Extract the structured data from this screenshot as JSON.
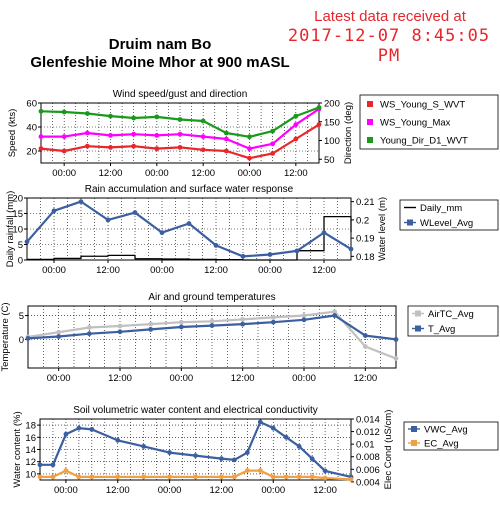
{
  "header": {
    "station_name": "Druim nam Bo",
    "station_subtitle": "Glenfeshie Moine Mhor at 900 mASL",
    "latest_label": "Latest data received at",
    "latest_time": "2017-12-07 8:45:05 PM"
  },
  "colors": {
    "red": "#e8262c",
    "magenta": "#ff00ff",
    "green": "#1a9a1a",
    "blue": "#3b5fa0",
    "black": "#000000",
    "gray": "#c0c0c0",
    "orange": "#f0a040"
  },
  "chart_data": [
    {
      "type": "line",
      "title": "Wind speed/gust and direction",
      "ylabel": "Speed (kts)",
      "y2label": "Direction (deg)",
      "ylim": [
        10,
        60
      ],
      "y2lim": [
        40,
        200
      ],
      "yticks": [
        20,
        40,
        60
      ],
      "y2ticks": [
        50,
        100,
        150,
        200
      ],
      "x_ticks": [
        "00:00",
        "12:00",
        "00:00",
        "12:00",
        "00:00",
        "12:00"
      ],
      "legend_position": "right",
      "x": [
        0,
        6,
        12,
        18,
        24,
        30,
        36,
        42,
        48,
        54,
        60,
        66,
        72
      ],
      "series": [
        {
          "name": "WS_Young_S_WVT",
          "color": "#e8262c",
          "axis": "left",
          "marker": "dot",
          "values": [
            22,
            20,
            24,
            23,
            24,
            22,
            23,
            21,
            20,
            14,
            18,
            30,
            42
          ]
        },
        {
          "name": "WS_Young_Max",
          "color": "#ff00ff",
          "axis": "left",
          "marker": "dot",
          "values": [
            32,
            32,
            35,
            33,
            34,
            33,
            34,
            32,
            30,
            22,
            26,
            42,
            55
          ]
        },
        {
          "name": "Young_Dir_D1_WVT",
          "color": "#1a9a1a",
          "axis": "right",
          "marker": "dot",
          "values": [
            178,
            176,
            172,
            165,
            160,
            163,
            156,
            152,
            120,
            110,
            125,
            165,
            188
          ]
        }
      ]
    },
    {
      "type": "line",
      "title": "Rain accumulation and surface water response",
      "ylabel": "Daily rainfall (mm)",
      "y2label": "Water level (m)",
      "ylim": [
        0,
        20
      ],
      "y2lim": [
        0.178,
        0.212
      ],
      "yticks": [
        0,
        5,
        10,
        15,
        20
      ],
      "y2ticks": [
        0.18,
        0.19,
        0.2,
        0.21
      ],
      "x_ticks": [
        "00:00",
        "12:00",
        "00:00",
        "12:00",
        "00:00",
        "12:00"
      ],
      "legend_position": "right",
      "x": [
        0,
        6,
        12,
        18,
        24,
        30,
        36,
        42,
        48,
        54,
        60,
        66,
        72
      ],
      "series": [
        {
          "name": "Daily_mm",
          "color": "#000000",
          "axis": "left",
          "marker": "none",
          "values": [
            0.2,
            0.5,
            1.2,
            1.5,
            0.4,
            0.3,
            0.2,
            0.1,
            0,
            0,
            3,
            14,
            9
          ]
        },
        {
          "name": "WLevel_Avg",
          "color": "#3b5fa0",
          "axis": "right",
          "marker": "dot",
          "values": [
            0.188,
            0.205,
            0.21,
            0.2,
            0.204,
            0.193,
            0.198,
            0.186,
            0.18,
            0.181,
            0.183,
            0.193,
            0.184
          ]
        }
      ]
    },
    {
      "type": "line",
      "title": "Air and ground temperatures",
      "ylabel": "Temperature (C)",
      "ylim": [
        -6,
        7
      ],
      "yticks": [
        0,
        5
      ],
      "x_ticks": [
        "00:00",
        "12:00",
        "00:00",
        "12:00",
        "00:00",
        "12:00"
      ],
      "legend_position": "right",
      "x": [
        0,
        6,
        12,
        18,
        24,
        30,
        36,
        42,
        48,
        54,
        60,
        66,
        72
      ],
      "series": [
        {
          "name": "AirTC_Avg",
          "color": "#c0c0c0",
          "axis": "left",
          "marker": "dot",
          "values": [
            0.5,
            1.5,
            2.5,
            2.8,
            3.2,
            3.6,
            3.8,
            4.2,
            4.6,
            5,
            5.8,
            -1.5,
            -4
          ]
        },
        {
          "name": "T_Avg",
          "color": "#3b5fa0",
          "axis": "left",
          "marker": "dot",
          "values": [
            0.2,
            0.6,
            1.2,
            1.6,
            2.1,
            2.6,
            2.9,
            3.2,
            3.6,
            4.1,
            5,
            0.8,
            0
          ]
        }
      ]
    },
    {
      "type": "line",
      "title": "Soil volumetric water content and electrical conductivity",
      "ylabel": "Water content (%)",
      "y2label": "Elec Cond (uS/cm)",
      "ylim": [
        9,
        19
      ],
      "y2lim": [
        0.0043,
        0.014
      ],
      "yticks": [
        10,
        12,
        14,
        16,
        18
      ],
      "y2ticks": [
        0.004,
        0.006,
        0.008,
        0.01,
        0.012,
        0.014
      ],
      "x_ticks": [
        "00:00",
        "12:00",
        "00:00",
        "12:00",
        "00:00",
        "12:00"
      ],
      "legend_position": "right",
      "x": [
        0,
        3,
        6,
        9,
        12,
        18,
        24,
        30,
        36,
        42,
        45,
        48,
        51,
        54,
        57,
        60,
        63,
        66,
        72
      ],
      "series": [
        {
          "name": "VWC_Avg",
          "color": "#3b5fa0",
          "axis": "left",
          "marker": "dot",
          "values": [
            11.5,
            11.5,
            16.5,
            17.5,
            17.3,
            15.5,
            14.5,
            13.5,
            13,
            12.5,
            12.3,
            13.5,
            18.5,
            17.5,
            16,
            14.5,
            12.5,
            10.5,
            9.5
          ]
        },
        {
          "name": "EC_Avg",
          "color": "#f0a040",
          "axis": "right",
          "marker": "dot",
          "values": [
            0.0048,
            0.0048,
            0.0058,
            0.0048,
            0.0048,
            0.0048,
            0.0048,
            0.0048,
            0.0048,
            0.0048,
            0.0048,
            0.0058,
            0.0058,
            0.0048,
            0.0048,
            0.0048,
            0.0048,
            0.0046,
            0.0044
          ]
        }
      ]
    }
  ]
}
